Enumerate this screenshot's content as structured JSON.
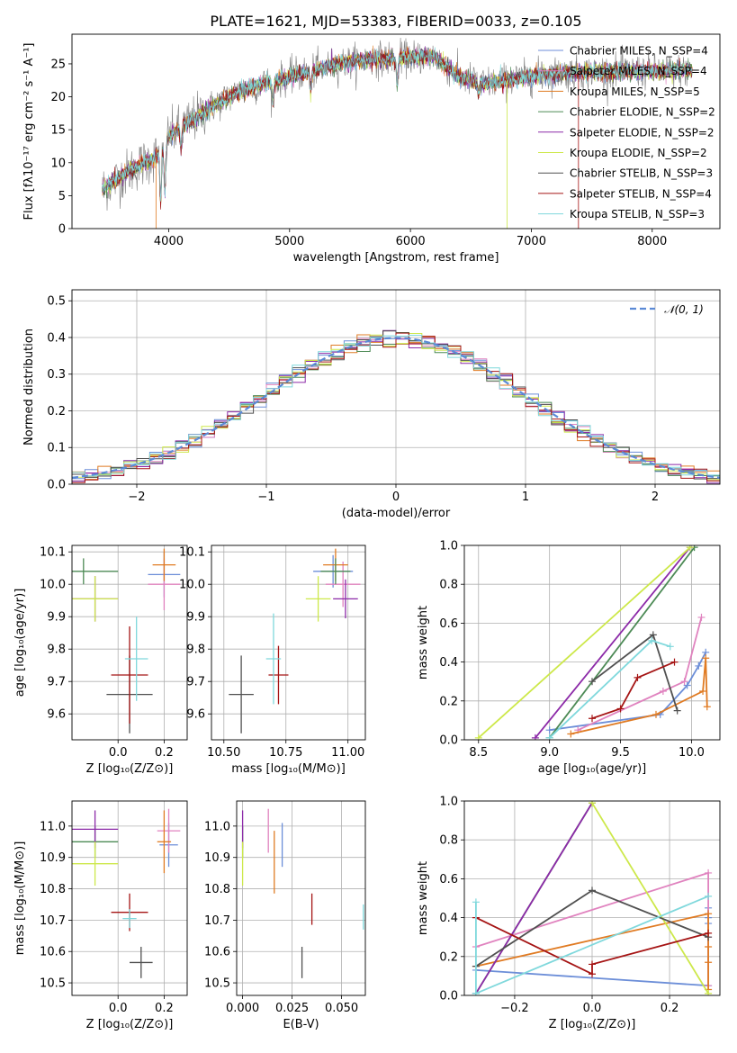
{
  "figure_title": "PLATE=1621, MJD=53383, FIBERID=0033, z=0.105",
  "model_colors": {
    "Chabrier MILES": "#6c8ed8",
    "Salpeter MILES": "#e083bf",
    "Kroupa MILES": "#e07b23",
    "Chabrier ELODIE": "#4c8a55",
    "Salpeter ELODIE": "#8c2aa8",
    "Kroupa ELODIE": "#cde84a",
    "Chabrier STELIB": "#505050",
    "Salpeter STELIB": "#a51414",
    "Kroupa STELIB": "#7fd8dc"
  },
  "chart_data": [
    {
      "type": "line",
      "id": "spectrum",
      "xlabel": "wavelength [Angstrom, rest frame]",
      "ylabel": "Flux [fλ10⁻¹⁷ erg cm⁻² s⁻¹ A⁻¹]",
      "xlim": [
        3200,
        8560
      ],
      "ylim": [
        0,
        29.5
      ],
      "xticks": [
        4000,
        5000,
        6000,
        7000,
        8000
      ],
      "yticks": [
        0,
        5,
        10,
        15,
        20,
        25
      ],
      "legend_position": "top-right",
      "legend": [
        "Chabrier MILES, N_SSP=4",
        "Salpeter MILES, N_SSP=4",
        "Kroupa MILES, N_SSP=5",
        "Chabrier ELODIE, N_SSP=2",
        "Salpeter ELODIE, N_SSP=2",
        "Kroupa ELODIE, N_SSP=2",
        "Chabrier STELIB, N_SSP=3",
        "Salpeter STELIB, N_SSP=4",
        "Kroupa STELIB, N_SSP=3"
      ],
      "continuum": {
        "x": [
          3450,
          3700,
          3900,
          4000,
          4200,
          4400,
          4600,
          4800,
          5000,
          5200,
          5400,
          5600,
          5800,
          6000,
          6200,
          6400,
          6600,
          6800,
          7000,
          7200,
          7400,
          7600,
          7800,
          8000,
          8200,
          8330
        ],
        "y": [
          6,
          9,
          11,
          14,
          16.5,
          19,
          21,
          22,
          23,
          24,
          25,
          25.5,
          25.8,
          26,
          26.2,
          23,
          22,
          22.5,
          23,
          23.5,
          23.7,
          23.8,
          23.8,
          23.9,
          23.9,
          24
        ]
      },
      "absorption_features": [
        {
          "x": 3934,
          "depth": 8
        },
        {
          "x": 3968,
          "depth": 8
        },
        {
          "x": 4102,
          "depth": 3
        },
        {
          "x": 4861,
          "depth": 3
        },
        {
          "x": 5175,
          "depth": 3
        },
        {
          "x": 5890,
          "depth": 4
        },
        {
          "x": 6563,
          "depth": 2
        }
      ],
      "noise_sigma_data": 1.3,
      "noise_sigma_model": 0.6
    },
    {
      "type": "histogram",
      "id": "residuals",
      "xlabel": "(data-model)/error",
      "ylabel": "Normed distribution",
      "xlim": [
        -2.5,
        2.5
      ],
      "ylim": [
        0,
        0.53
      ],
      "xticks": [
        -2,
        -1,
        0,
        1,
        2
      ],
      "xtick_labels": [
        "−2",
        "−1",
        "0",
        "1",
        "2"
      ],
      "yticks": [
        0,
        0.1,
        0.2,
        0.3,
        0.4,
        0.5
      ],
      "ytick_labels": [
        "0.0",
        "0.1",
        "0.2",
        "0.3",
        "0.4",
        "0.5"
      ],
      "bin_width": 0.1,
      "curve_legend": "𝒩(0, 1)",
      "legend_position": "top-right",
      "curve_color": "#5b8ad6",
      "bin_noise_amplitude": 0.035
    },
    {
      "type": "errorbar",
      "id": "age_vs_Z",
      "xlabel": "Z [log₁₀(Z/Z⊙)]",
      "ylabel": "age  [log₁₀(age/yr)]",
      "xlim": [
        -0.2,
        0.3
      ],
      "ylim": [
        9.52,
        10.12
      ],
      "xticks": [
        0.0,
        0.2
      ],
      "xtick_labels": [
        "0.0",
        "0.2"
      ],
      "yticks": [
        9.6,
        9.7,
        9.8,
        9.9,
        10.0,
        10.1
      ],
      "ytick_labels": [
        "9.6",
        "9.7",
        "9.8",
        "9.9",
        "10.0",
        "10.1"
      ],
      "points": [
        {
          "model": "Chabrier MILES",
          "x": 0.2,
          "xerr": 0.07,
          "y": 10.03,
          "yerr": 0.07
        },
        {
          "model": "Salpeter MILES",
          "x": 0.2,
          "xerr": 0.07,
          "y": 10.0,
          "yerr": 0.08
        },
        {
          "model": "Kroupa MILES",
          "x": 0.2,
          "xerr": 0.05,
          "y": 10.06,
          "yerr": 0.05
        },
        {
          "model": "Chabrier ELODIE",
          "x": -0.15,
          "xerr": 0.15,
          "y": 10.04,
          "yerr": 0.04
        },
        {
          "model": "Salpeter ELODIE",
          "x": -0.1,
          "xerr": 0.1,
          "y": 9.955,
          "yerr": 0.07
        },
        {
          "model": "Kroupa ELODIE",
          "x": -0.1,
          "xerr": 0.1,
          "y": 9.955,
          "yerr": 0.07
        },
        {
          "model": "Chabrier STELIB",
          "x": 0.05,
          "xerr": 0.1,
          "y": 9.66,
          "yerr": 0.12
        },
        {
          "model": "Salpeter STELIB",
          "x": 0.05,
          "xerr": 0.08,
          "y": 9.72,
          "yerr": 0.15
        },
        {
          "model": "Kroupa STELIB",
          "x": 0.08,
          "xerr": 0.05,
          "y": 9.77,
          "yerr": 0.13
        }
      ]
    },
    {
      "type": "errorbar",
      "id": "age_vs_mass",
      "xlabel": "mass [log₁₀(M/M⊙)]",
      "ylabel": "",
      "xlim": [
        10.45,
        11.07
      ],
      "ylim": [
        9.52,
        10.12
      ],
      "xticks": [
        10.5,
        10.75,
        11.0
      ],
      "xtick_labels": [
        "10.50",
        "10.75",
        "11.00"
      ],
      "yticks": [
        9.6,
        9.7,
        9.8,
        9.9,
        10.0,
        10.1
      ],
      "ytick_labels": [
        "9.6",
        "9.7",
        "9.8",
        "9.9",
        "10.0",
        "10.1"
      ],
      "points": [
        {
          "model": "Chabrier MILES",
          "x": 10.94,
          "xerr": 0.08,
          "y": 10.04,
          "yerr": 0.05
        },
        {
          "model": "Salpeter MILES",
          "x": 10.98,
          "xerr": 0.07,
          "y": 10.0,
          "yerr": 0.07
        },
        {
          "model": "Kroupa MILES",
          "x": 10.95,
          "xerr": 0.05,
          "y": 10.06,
          "yerr": 0.05
        },
        {
          "model": "Chabrier ELODIE",
          "x": 10.95,
          "xerr": 0.06,
          "y": 10.04,
          "yerr": 0.04
        },
        {
          "model": "Salpeter ELODIE",
          "x": 10.99,
          "xerr": 0.05,
          "y": 9.955,
          "yerr": 0.06
        },
        {
          "model": "Kroupa ELODIE",
          "x": 10.88,
          "xerr": 0.05,
          "y": 9.955,
          "yerr": 0.07
        },
        {
          "model": "Chabrier STELIB",
          "x": 10.57,
          "xerr": 0.05,
          "y": 9.66,
          "yerr": 0.12
        },
        {
          "model": "Salpeter STELIB",
          "x": 10.72,
          "xerr": 0.04,
          "y": 9.72,
          "yerr": 0.09
        },
        {
          "model": "Kroupa STELIB",
          "x": 10.7,
          "xerr": 0.03,
          "y": 9.77,
          "yerr": 0.14
        }
      ]
    },
    {
      "type": "line",
      "id": "weight_vs_age",
      "xlabel": "age  [log₁₀(age/yr)]",
      "ylabel": "mass weight",
      "xlim": [
        8.4,
        10.2
      ],
      "ylim": [
        0,
        1
      ],
      "xticks": [
        8.5,
        9.0,
        9.5,
        10.0
      ],
      "xtick_labels": [
        "8.5",
        "9.0",
        "9.5",
        "10.0"
      ],
      "yticks": [
        0,
        0.2,
        0.4,
        0.6,
        0.8,
        1.0
      ],
      "ytick_labels": [
        "0.0",
        "0.2",
        "0.4",
        "0.6",
        "0.8",
        "1.0"
      ],
      "series": [
        {
          "model": "Chabrier MILES",
          "x": [
            9.0,
            9.78,
            9.97,
            10.05,
            10.1
          ],
          "y": [
            0.05,
            0.13,
            0.28,
            0.38,
            0.45
          ]
        },
        {
          "model": "Salpeter MILES",
          "x": [
            9.2,
            9.8,
            9.95,
            10.07
          ],
          "y": [
            0.05,
            0.25,
            0.3,
            0.63
          ]
        },
        {
          "model": "Kroupa MILES",
          "x": [
            9.15,
            9.75,
            10.08,
            10.1,
            10.11
          ],
          "y": [
            0.03,
            0.13,
            0.25,
            0.42,
            0.17
          ]
        },
        {
          "model": "Chabrier ELODIE",
          "x": [
            9.0,
            10.02
          ],
          "y": [
            0.01,
            0.99
          ]
        },
        {
          "model": "Salpeter ELODIE",
          "x": [
            8.9,
            9.99
          ],
          "y": [
            0.01,
            0.99
          ]
        },
        {
          "model": "Kroupa ELODIE",
          "x": [
            8.5,
            9.99
          ],
          "y": [
            0.01,
            0.99
          ]
        },
        {
          "model": "Chabrier STELIB",
          "x": [
            9.3,
            9.73,
            9.9
          ],
          "y": [
            0.3,
            0.54,
            0.15
          ]
        },
        {
          "model": "Salpeter STELIB",
          "x": [
            9.3,
            9.5,
            9.62,
            9.88
          ],
          "y": [
            0.11,
            0.16,
            0.32,
            0.4
          ]
        },
        {
          "model": "Kroupa STELIB",
          "x": [
            9.0,
            9.72,
            9.85
          ],
          "y": [
            0.01,
            0.51,
            0.48
          ]
        }
      ]
    },
    {
      "type": "errorbar",
      "id": "mass_vs_Z",
      "xlabel": "Z [log₁₀(Z/Z⊙)]",
      "ylabel": "mass [log₁₀(M/M⊙)]",
      "xlim": [
        -0.2,
        0.3
      ],
      "ylim": [
        10.46,
        11.08
      ],
      "xticks": [
        0.0,
        0.2
      ],
      "xtick_labels": [
        "0.0",
        "0.2"
      ],
      "yticks": [
        10.5,
        10.6,
        10.7,
        10.8,
        10.9,
        11.0
      ],
      "ytick_labels": [
        "10.5",
        "10.6",
        "10.7",
        "10.8",
        "10.9",
        "11.0"
      ],
      "points": [
        {
          "model": "Chabrier MILES",
          "x": 0.22,
          "xerr": 0.04,
          "y": 10.94,
          "yerr": 0.07
        },
        {
          "model": "Salpeter MILES",
          "x": 0.22,
          "xerr": 0.05,
          "y": 10.985,
          "yerr": 0.07
        },
        {
          "model": "Kroupa MILES",
          "x": 0.2,
          "xerr": 0.03,
          "y": 10.95,
          "yerr": 0.1
        },
        {
          "model": "Chabrier ELODIE",
          "x": -0.1,
          "xerr": 0.1,
          "y": 10.95,
          "yerr": 0.05
        },
        {
          "model": "Salpeter ELODIE",
          "x": -0.1,
          "xerr": 0.1,
          "y": 10.99,
          "yerr": 0.06
        },
        {
          "model": "Kroupa ELODIE",
          "x": -0.1,
          "xerr": 0.1,
          "y": 10.88,
          "yerr": 0.07
        },
        {
          "model": "Chabrier STELIB",
          "x": 0.1,
          "xerr": 0.05,
          "y": 10.565,
          "yerr": 0.05
        },
        {
          "model": "Salpeter STELIB",
          "x": 0.05,
          "xerr": 0.08,
          "y": 10.725,
          "yerr": 0.06
        },
        {
          "model": "Kroupa STELIB",
          "x": 0.05,
          "xerr": 0.03,
          "y": 10.705,
          "yerr": 0.03
        }
      ]
    },
    {
      "type": "errorbar",
      "id": "mass_vs_ebv",
      "xlabel": "E(B-V)",
      "ylabel": "",
      "xlim": [
        -0.003,
        0.062
      ],
      "ylim": [
        10.46,
        11.08
      ],
      "xticks": [
        0.0,
        0.025,
        0.05
      ],
      "xtick_labels": [
        "0.000",
        "0.025",
        "0.050"
      ],
      "yticks": [
        10.5,
        10.6,
        10.7,
        10.8,
        10.9,
        11.0
      ],
      "ytick_labels": [
        "10.5",
        "10.6",
        "10.7",
        "10.8",
        "10.9",
        "11.0"
      ],
      "points": [
        {
          "model": "Chabrier MILES",
          "x": 0.02,
          "xerr": 0,
          "y": 10.94,
          "yerr": 0.07
        },
        {
          "model": "Salpeter MILES",
          "x": 0.013,
          "xerr": 0,
          "y": 10.985,
          "yerr": 0.07
        },
        {
          "model": "Kroupa MILES",
          "x": 0.016,
          "xerr": 0,
          "y": 10.885,
          "yerr": 0.1
        },
        {
          "model": "Chabrier ELODIE",
          "x": 0.0,
          "xerr": 0,
          "y": 10.95,
          "yerr": 0.05
        },
        {
          "model": "Salpeter ELODIE",
          "x": 0.0,
          "xerr": 0,
          "y": 10.99,
          "yerr": 0.06
        },
        {
          "model": "Kroupa ELODIE",
          "x": 0.0,
          "xerr": 0,
          "y": 10.88,
          "yerr": 0.07
        },
        {
          "model": "Chabrier STELIB",
          "x": 0.03,
          "xerr": 0,
          "y": 10.565,
          "yerr": 0.05
        },
        {
          "model": "Salpeter STELIB",
          "x": 0.035,
          "xerr": 0,
          "y": 10.735,
          "yerr": 0.05
        },
        {
          "model": "Kroupa STELIB",
          "x": 0.061,
          "xerr": 0,
          "y": 10.71,
          "yerr": 0.04
        }
      ]
    },
    {
      "type": "line",
      "id": "weight_vs_Z",
      "xlabel": "Z [log₁₀(Z/Z⊙)]",
      "ylabel": "mass weight",
      "xlim": [
        -0.33,
        0.33
      ],
      "ylim": [
        0,
        1
      ],
      "xticks": [
        -0.2,
        0.0,
        0.2
      ],
      "xtick_labels": [
        "−0.2",
        "0.0",
        "0.2"
      ],
      "yticks": [
        0,
        0.2,
        0.4,
        0.6,
        0.8,
        1.0
      ],
      "ytick_labels": [
        "0.0",
        "0.2",
        "0.4",
        "0.6",
        "0.8",
        "1.0"
      ],
      "series": [
        {
          "model": "Chabrier MILES",
          "x": [
            -0.3,
            0.3,
            0.3,
            0.3,
            0.3
          ],
          "y": [
            0.13,
            0.05,
            0.37,
            0.4,
            0.45
          ]
        },
        {
          "model": "Salpeter MILES",
          "x": [
            -0.3,
            0.3,
            0.3,
            0.3
          ],
          "y": [
            0.25,
            0.63,
            0.3,
            0.05
          ]
        },
        {
          "model": "Kroupa MILES",
          "x": [
            -0.3,
            0.3,
            0.3,
            0.3,
            0.3
          ],
          "y": [
            0.15,
            0.42,
            0.25,
            0.17,
            0.03
          ]
        },
        {
          "model": "Chabrier ELODIE",
          "x": [
            -0.3,
            0.0
          ],
          "y": [
            0.01,
            0.99
          ]
        },
        {
          "model": "Salpeter ELODIE",
          "x": [
            -0.3,
            0.0
          ],
          "y": [
            0.01,
            0.99
          ]
        },
        {
          "model": "Kroupa ELODIE",
          "x": [
            0.0,
            0.3
          ],
          "y": [
            0.99,
            0.01
          ]
        },
        {
          "model": "Chabrier STELIB",
          "x": [
            -0.3,
            0.0,
            0.3
          ],
          "y": [
            0.15,
            0.54,
            0.3
          ]
        },
        {
          "model": "Salpeter STELIB",
          "x": [
            -0.3,
            0.0,
            0.0,
            0.3
          ],
          "y": [
            0.4,
            0.11,
            0.16,
            0.32
          ]
        },
        {
          "model": "Kroupa STELIB",
          "x": [
            -0.3,
            -0.3,
            -0.3,
            0.3
          ],
          "y": [
            0.01,
            0.48,
            0.01,
            0.51
          ]
        }
      ]
    }
  ]
}
